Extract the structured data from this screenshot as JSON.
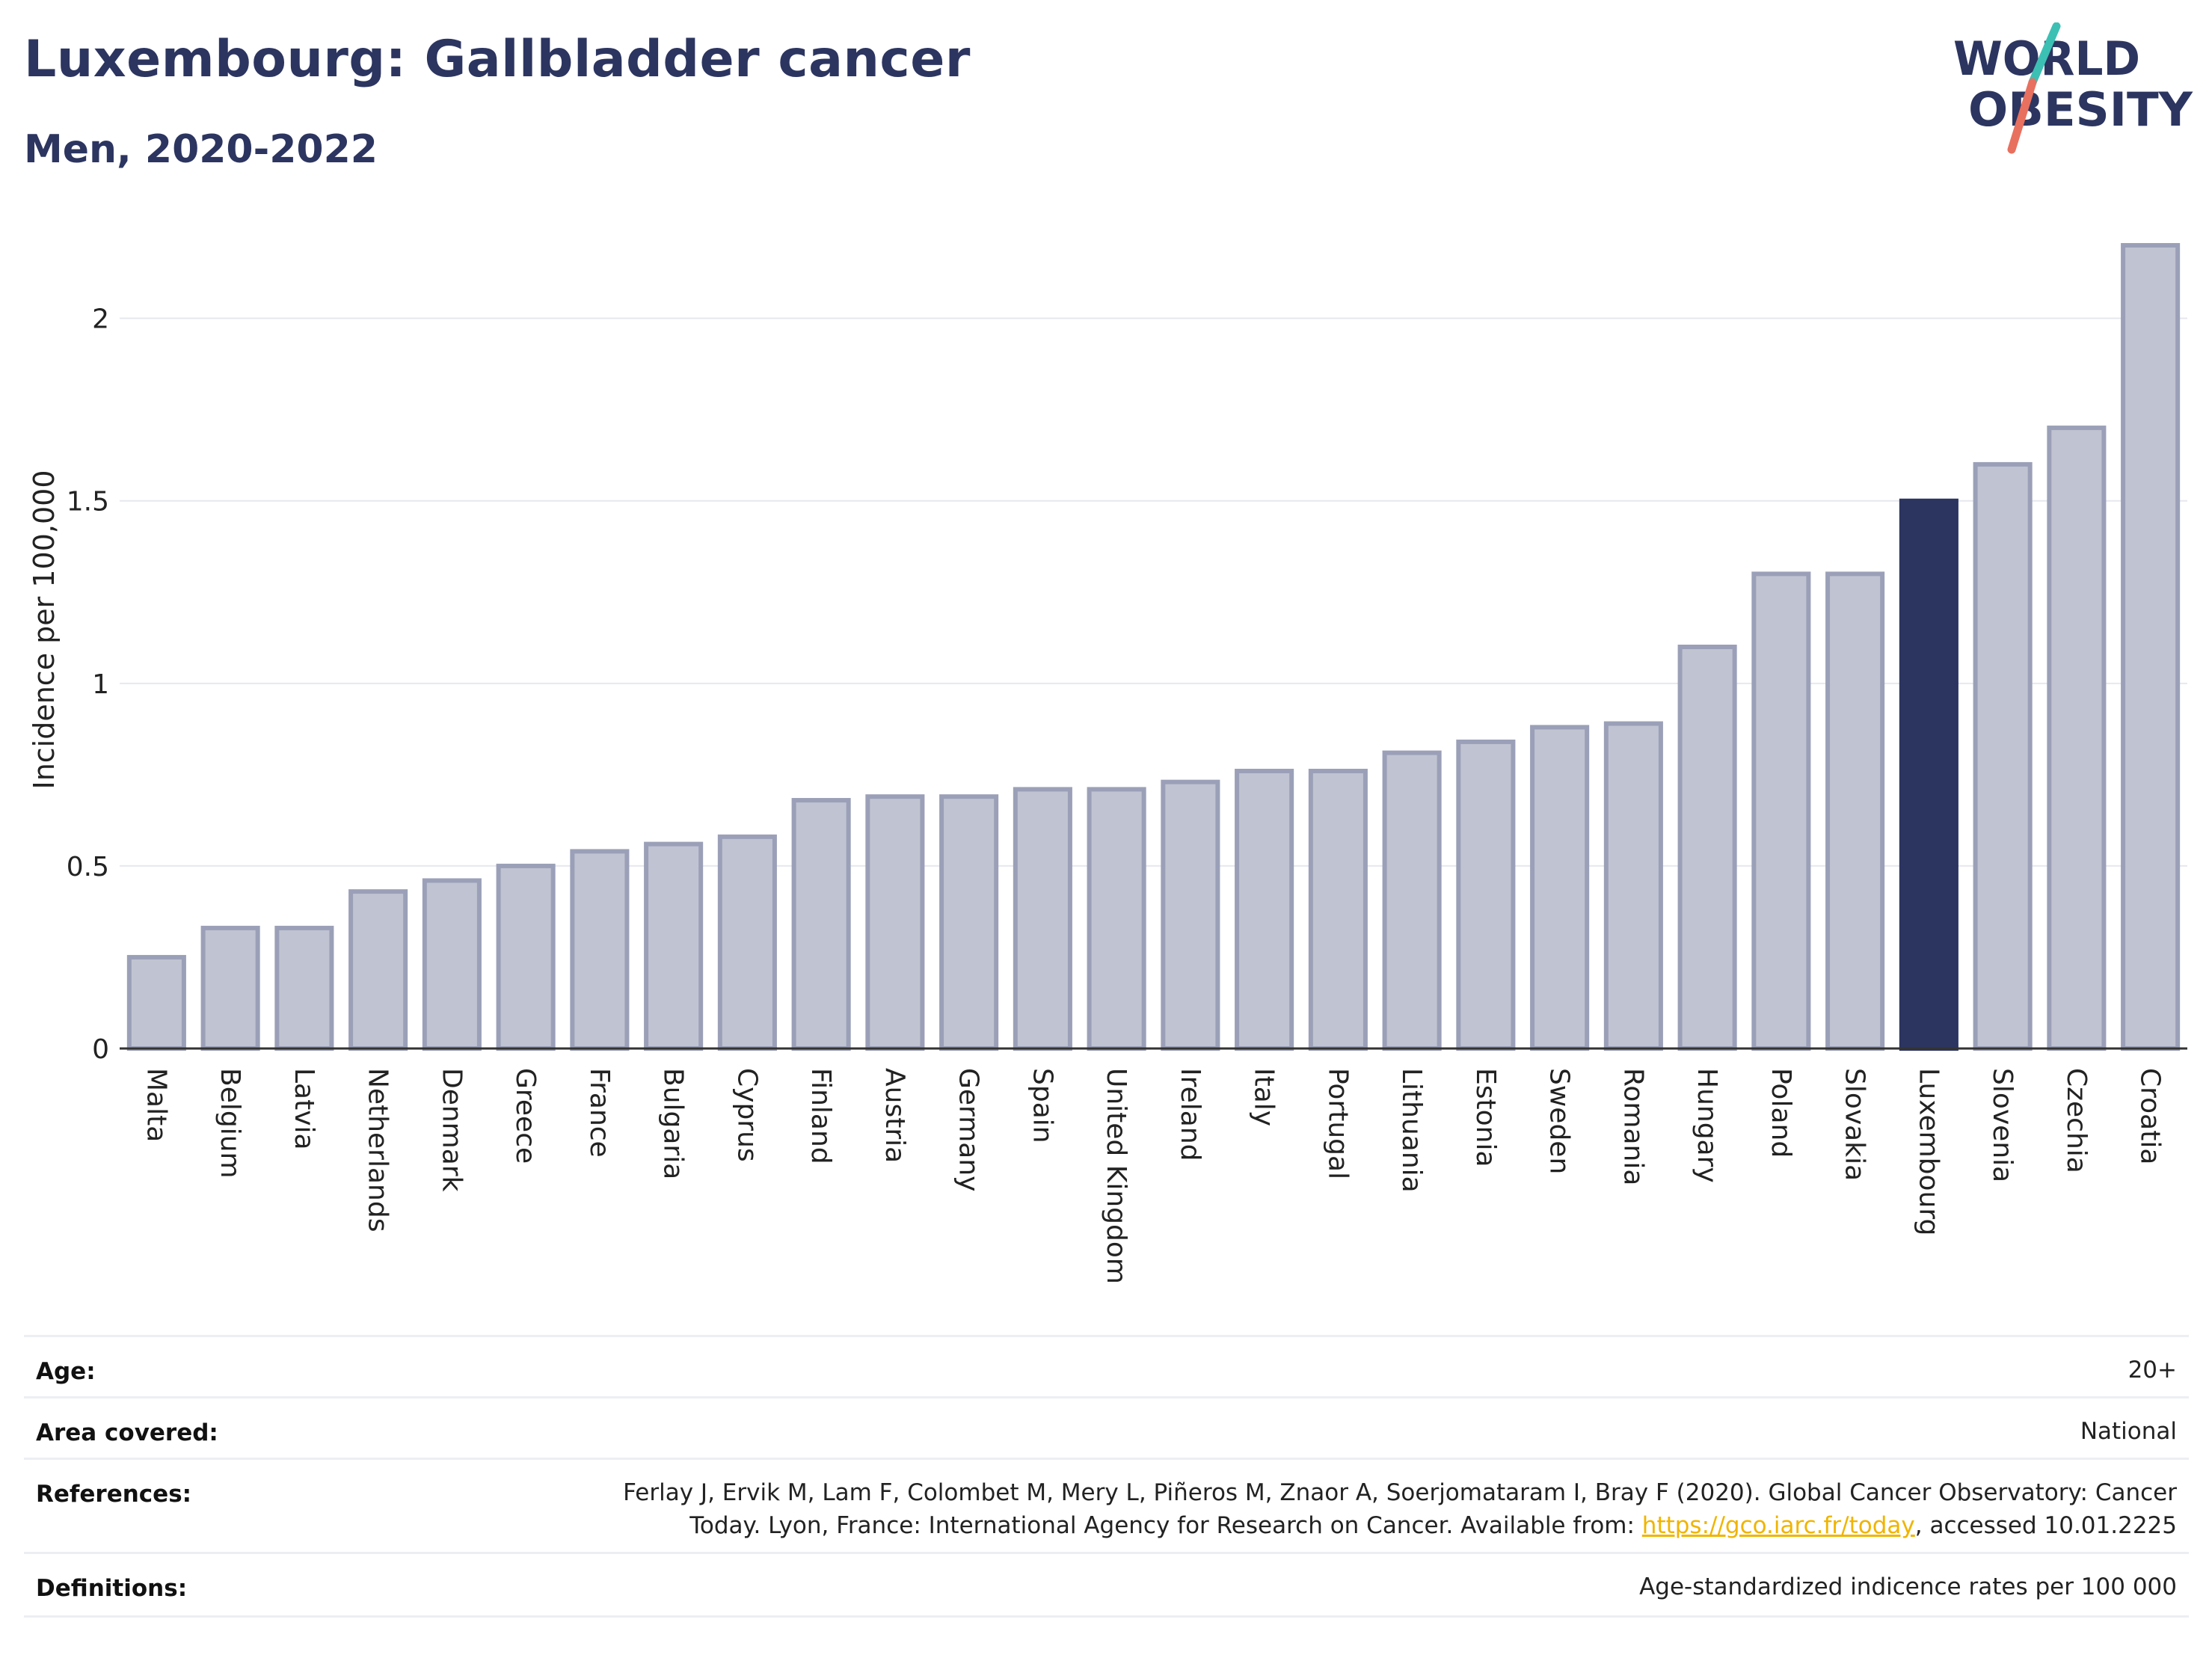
{
  "header": {
    "title": "Luxembourg: Gallbladder cancer",
    "subtitle": "Men, 2020-2022"
  },
  "logo": {
    "line1": "WORLD",
    "line2": "OBESITY",
    "colors": {
      "text": "#2c3560",
      "slash_top": "#3cc0b4",
      "slash_bottom": "#e8705f"
    }
  },
  "chart_data": {
    "type": "bar",
    "title": "",
    "xlabel": "",
    "ylabel": "Incidence per 100,000",
    "ylim": [
      0,
      2.2
    ],
    "yticks": [
      0,
      0.5,
      1,
      1.5,
      2
    ],
    "ytick_labels": [
      "0",
      "0.5",
      "1",
      "1.5",
      "2"
    ],
    "grid": true,
    "highlight": "Luxembourg",
    "colors": {
      "bar": "#c0c3d1",
      "bar_border": "#9ba0b8",
      "highlight": "#2c3560",
      "grid": "#e6e8ee",
      "axis": "#333333"
    },
    "categories": [
      "Malta",
      "Belgium",
      "Latvia",
      "Netherlands",
      "Denmark",
      "Greece",
      "France",
      "Bulgaria",
      "Cyprus",
      "Finland",
      "Austria",
      "Germany",
      "Spain",
      "United Kingdom",
      "Ireland",
      "Italy",
      "Portugal",
      "Lithuania",
      "Estonia",
      "Sweden",
      "Romania",
      "Hungary",
      "Poland",
      "Slovakia",
      "Luxembourg",
      "Slovenia",
      "Czechia",
      "Croatia"
    ],
    "values": [
      0.25,
      0.33,
      0.33,
      0.43,
      0.46,
      0.5,
      0.54,
      0.56,
      0.58,
      0.68,
      0.69,
      0.69,
      0.71,
      0.71,
      0.73,
      0.76,
      0.76,
      0.81,
      0.84,
      0.88,
      0.89,
      1.1,
      1.3,
      1.3,
      1.5,
      1.6,
      1.7,
      2.2
    ]
  },
  "info": {
    "age_label": "Age:",
    "age_value": "20+",
    "area_label": "Area covered:",
    "area_value": "National",
    "references_label": "References:",
    "references_line1": "Ferlay J, Ervik M, Lam F, Colombet M, Mery L, Piñeros M, Znaor A, Soerjomataram I, Bray F (2020). Global Cancer Observatory: Cancer",
    "references_line2_pre": "Today. Lyon, France: International Agency for Research on Cancer. Available from: ",
    "references_link": "https://gco.iarc.fr/today",
    "references_line2_post": ", accessed 10.01.2225",
    "definitions_label": "Definitions:",
    "definitions_value": "Age-standardized indicence rates per 100 000"
  }
}
